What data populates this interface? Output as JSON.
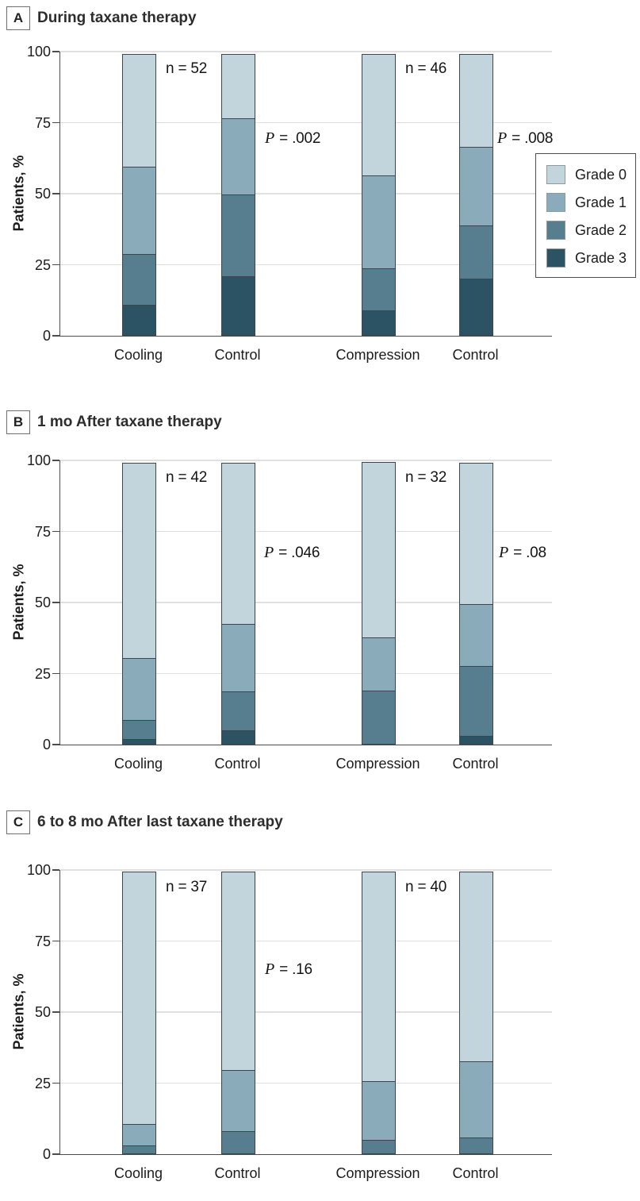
{
  "colors": {
    "grade0": "#c2d4dc",
    "grade1": "#8aacba",
    "grade2": "#577e8f",
    "grade3": "#2b5363",
    "segment_border": "#3a4750",
    "grid": "#e0e0e0",
    "axis": "#4d4d4d",
    "text": "#1c1c1c"
  },
  "y_axis": {
    "label": "Patients, %",
    "ticks": [
      "100",
      "75",
      "50",
      "25",
      "0"
    ]
  },
  "x_categories": [
    "Cooling",
    "Control",
    "Compression",
    "Control"
  ],
  "legend": {
    "position": "right",
    "items": [
      {
        "label": "Grade 0",
        "color": "grade0"
      },
      {
        "label": "Grade 1",
        "color": "grade1"
      },
      {
        "label": "Grade 2",
        "color": "grade2"
      },
      {
        "label": "Grade 3",
        "color": "grade3"
      }
    ]
  },
  "chart_data": [
    {
      "type": "bar",
      "stacked": true,
      "panel_letter": "A",
      "title": "During taxane therapy",
      "ylabel": "Patients, %",
      "ylim": [
        0,
        100
      ],
      "grid": true,
      "categories": [
        "Cooling",
        "Control",
        "Compression",
        "Control"
      ],
      "stack_order_bottom_to_top": [
        "Grade 3",
        "Grade 2",
        "Grade 1",
        "Grade 0"
      ],
      "series": [
        {
          "name": "Grade 0",
          "values": [
            40,
            23,
            43,
            33
          ]
        },
        {
          "name": "Grade 1",
          "values": [
            31,
            27,
            33,
            28
          ]
        },
        {
          "name": "Grade 2",
          "values": [
            18,
            29,
            15,
            19
          ]
        },
        {
          "name": "Grade 3",
          "values": [
            11,
            21,
            9,
            20
          ]
        }
      ],
      "annotations": [
        {
          "label": "n = 52",
          "x": 209,
          "y": 76
        },
        {
          "label": "P = .002",
          "x": 334,
          "y": 163
        },
        {
          "label": "n = 46",
          "x": 511,
          "y": 76
        },
        {
          "label": "P = .008",
          "x": 627,
          "y": 163
        }
      ],
      "show_legend": true
    },
    {
      "type": "bar",
      "stacked": true,
      "panel_letter": "B",
      "title": "1 mo After taxane therapy",
      "ylabel": "Patients, %",
      "ylim": [
        0,
        100
      ],
      "grid": true,
      "categories": [
        "Cooling",
        "Control",
        "Compression",
        "Control"
      ],
      "stack_order_bottom_to_top": [
        "Grade 3",
        "Grade 2",
        "Grade 1",
        "Grade 0"
      ],
      "series": [
        {
          "name": "Grade 0",
          "values": [
            69,
            57,
            62,
            50
          ]
        },
        {
          "name": "Grade 1",
          "values": [
            22,
            24,
            19,
            22
          ]
        },
        {
          "name": "Grade 2",
          "values": [
            7,
            14,
            19,
            25
          ]
        },
        {
          "name": "Grade 3",
          "values": [
            2,
            5,
            0,
            3
          ]
        }
      ],
      "annotations": [
        {
          "label": "n = 42",
          "x": 209,
          "y": 86
        },
        {
          "label": "P = .046",
          "x": 333,
          "y": 180
        },
        {
          "label": "n = 32",
          "x": 511,
          "y": 86
        },
        {
          "label": "P = .08",
          "x": 629,
          "y": 180
        }
      ],
      "show_legend": false
    },
    {
      "type": "bar",
      "stacked": true,
      "panel_letter": "C",
      "title": "6 to 8 mo After last taxane therapy",
      "ylabel": "Patients, %",
      "ylim": [
        0,
        100
      ],
      "grid": true,
      "categories": [
        "Cooling",
        "Control",
        "Compression",
        "Control"
      ],
      "stack_order_bottom_to_top": [
        "Grade 3",
        "Grade 2",
        "Grade 1",
        "Grade 0"
      ],
      "series": [
        {
          "name": "Grade 0",
          "values": [
            89,
            70,
            74,
            67
          ]
        },
        {
          "name": "Grade 1",
          "values": [
            8,
            22,
            21,
            27
          ]
        },
        {
          "name": "Grade 2",
          "values": [
            3,
            8,
            5,
            6
          ]
        },
        {
          "name": "Grade 3",
          "values": [
            0,
            0,
            0,
            0
          ]
        }
      ],
      "annotations": [
        {
          "label": "n = 37",
          "x": 209,
          "y": 97
        },
        {
          "label": "P = .16",
          "x": 334,
          "y": 200
        },
        {
          "label": "n = 40",
          "x": 511,
          "y": 97
        }
      ],
      "show_legend": false
    }
  ]
}
